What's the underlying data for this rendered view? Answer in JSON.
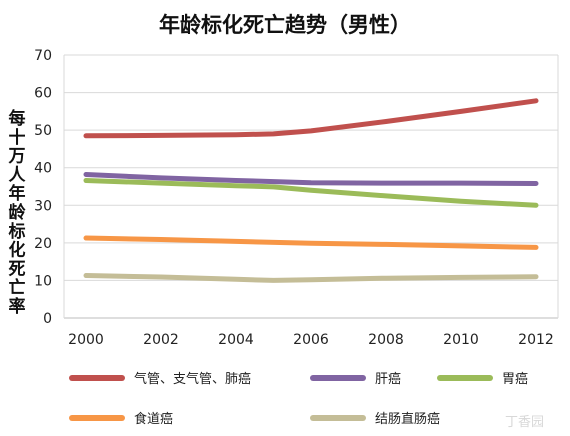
{
  "chart_data": {
    "type": "line",
    "title": "年龄标化死亡趋势（男性）",
    "ylabel": "每十万人年龄标化死亡率",
    "xlabel": "",
    "x": [
      2000,
      2002,
      2004,
      2006,
      2008,
      2010,
      2012
    ],
    "xlim": [
      2000,
      2012
    ],
    "ylim": [
      0,
      70
    ],
    "yticks": [
      0,
      10,
      20,
      30,
      40,
      50,
      60,
      70
    ],
    "grid": true,
    "legend_position": "bottom",
    "series": [
      {
        "name": "气管、支气管、肺癌",
        "color": "#c0504d",
        "points": [
          [
            2000,
            48.5
          ],
          [
            2002,
            48.6
          ],
          [
            2004,
            48.8
          ],
          [
            2005,
            49.0
          ],
          [
            2006,
            49.8
          ],
          [
            2008,
            52.3
          ],
          [
            2010,
            55.0
          ],
          [
            2012,
            57.8
          ]
        ]
      },
      {
        "name": "肝癌",
        "color": "#8064a2",
        "points": [
          [
            2000,
            38.2
          ],
          [
            2002,
            37.3
          ],
          [
            2004,
            36.6
          ],
          [
            2006,
            36.0
          ],
          [
            2008,
            35.9
          ],
          [
            2010,
            35.9
          ],
          [
            2012,
            35.8
          ]
        ]
      },
      {
        "name": "胃癌",
        "color": "#9bbb59",
        "points": [
          [
            2000,
            36.6
          ],
          [
            2002,
            35.9
          ],
          [
            2004,
            35.2
          ],
          [
            2005,
            34.9
          ],
          [
            2006,
            34.0
          ],
          [
            2008,
            32.5
          ],
          [
            2010,
            31.1
          ],
          [
            2012,
            30.0
          ]
        ]
      },
      {
        "name": "食道癌",
        "color": "#f79646",
        "points": [
          [
            2000,
            21.3
          ],
          [
            2002,
            20.9
          ],
          [
            2004,
            20.4
          ],
          [
            2006,
            19.9
          ],
          [
            2008,
            19.6
          ],
          [
            2010,
            19.2
          ],
          [
            2012,
            18.8
          ]
        ]
      },
      {
        "name": "结肠直肠癌",
        "color": "#c4bd97",
        "points": [
          [
            2000,
            11.3
          ],
          [
            2002,
            10.9
          ],
          [
            2004,
            10.3
          ],
          [
            2005,
            10.0
          ],
          [
            2006,
            10.2
          ],
          [
            2008,
            10.6
          ],
          [
            2010,
            10.8
          ],
          [
            2012,
            11.0
          ]
        ]
      }
    ]
  },
  "watermark": "丁香园"
}
